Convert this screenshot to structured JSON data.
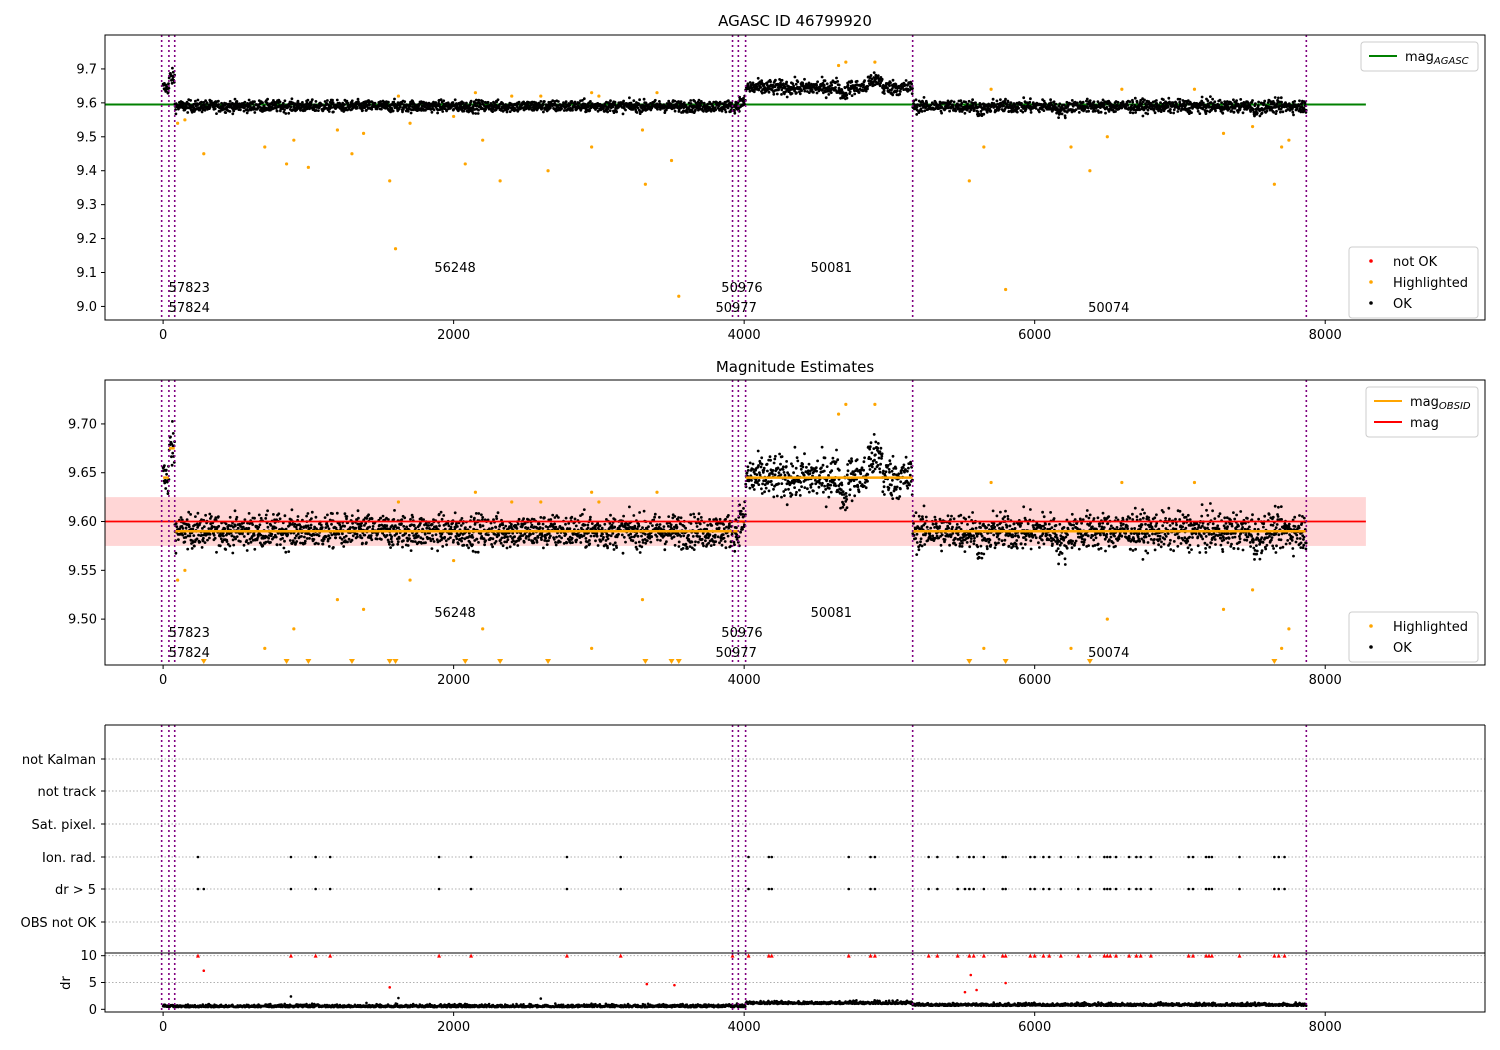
{
  "figure": {
    "title": "AGASC ID 46799920",
    "colors": {
      "ok": "#000000",
      "highlighted": "#ffa500",
      "not_ok": "#ff0000",
      "mag_agasc": "#008000",
      "mag": "#ff0000",
      "mag_obsid": "#ffa500",
      "obs_boundary": "#800080",
      "mag_band": "#ffd6d6"
    }
  },
  "chart_data": [
    {
      "id": "agasc",
      "type": "scatter",
      "title": "AGASC ID 46799920",
      "xlim": [
        -400,
        9100
      ],
      "ylim": [
        8.96,
        9.8
      ],
      "x_ticks": [
        0,
        2000,
        4000,
        6000,
        8000
      ],
      "y_ticks": [
        9.0,
        9.1,
        9.2,
        9.3,
        9.4,
        9.5,
        9.6,
        9.7
      ],
      "legend_top": {
        "position": "top-right",
        "entries": [
          {
            "label": "mag",
            "sub": "AGASC",
            "color": "#008000"
          }
        ]
      },
      "legend_bottom": {
        "position": "bottom-right",
        "entries": [
          {
            "label": "not OK",
            "color": "#ff0000"
          },
          {
            "label": "Highlighted",
            "color": "#ffa500"
          },
          {
            "label": "OK",
            "color": "#000000"
          }
        ]
      },
      "mag_agasc_line": {
        "value": 9.595,
        "x_range": [
          -400,
          8280
        ]
      },
      "observations": [
        {
          "obsid": "57824",
          "start": 0,
          "end": 40,
          "mean": 9.66
        },
        {
          "obsid": "57823",
          "start": 40,
          "end": 80,
          "mean": 9.68
        },
        {
          "obsid": "56248",
          "start": 80,
          "end": 3920,
          "mean": 9.59
        },
        {
          "obsid": "50977",
          "start": 3920,
          "end": 3960,
          "mean": 9.59
        },
        {
          "obsid": "50976",
          "start": 3960,
          "end": 4010,
          "mean": 9.6
        },
        {
          "obsid": "50081",
          "start": 4010,
          "end": 5160,
          "mean": 9.645
        },
        {
          "obsid": "50074",
          "start": 5160,
          "end": 7870,
          "mean": 9.59
        }
      ],
      "obs_boundaries": [
        -10,
        40,
        80,
        3920,
        3960,
        4010,
        5160,
        7870
      ],
      "highlighted_points": [
        [
          100,
          9.54
        ],
        [
          150,
          9.55
        ],
        [
          280,
          9.45
        ],
        [
          700,
          9.47
        ],
        [
          850,
          9.42
        ],
        [
          900,
          9.49
        ],
        [
          1000,
          9.41
        ],
        [
          1200,
          9.52
        ],
        [
          1300,
          9.45
        ],
        [
          1380,
          9.51
        ],
        [
          1560,
          9.37
        ],
        [
          1600,
          9.17
        ],
        [
          1620,
          9.62
        ],
        [
          1700,
          9.54
        ],
        [
          2000,
          9.56
        ],
        [
          2080,
          9.42
        ],
        [
          2150,
          9.63
        ],
        [
          2200,
          9.49
        ],
        [
          2320,
          9.37
        ],
        [
          2400,
          9.62
        ],
        [
          2600,
          9.62
        ],
        [
          2650,
          9.4
        ],
        [
          2950,
          9.47
        ],
        [
          2950,
          9.63
        ],
        [
          3000,
          9.62
        ],
        [
          3300,
          9.52
        ],
        [
          3320,
          9.36
        ],
        [
          3400,
          9.63
        ],
        [
          3500,
          9.43
        ],
        [
          3550,
          9.03
        ],
        [
          4650,
          9.71
        ],
        [
          4700,
          9.72
        ],
        [
          4900,
          9.72
        ],
        [
          5650,
          9.47
        ],
        [
          5700,
          9.64
        ],
        [
          5550,
          9.37
        ],
        [
          5800,
          9.05
        ],
        [
          6250,
          9.47
        ],
        [
          6380,
          9.4
        ],
        [
          6500,
          9.5
        ],
        [
          6600,
          9.64
        ],
        [
          7100,
          9.64
        ],
        [
          7300,
          9.51
        ],
        [
          7500,
          9.53
        ],
        [
          7650,
          9.36
        ],
        [
          7700,
          9.47
        ],
        [
          7750,
          9.49
        ]
      ]
    },
    {
      "id": "estimates",
      "type": "scatter",
      "title": "Magnitude Estimates",
      "xlim": [
        -400,
        9100
      ],
      "ylim": [
        9.453,
        9.745
      ],
      "x_ticks": [
        0,
        2000,
        4000,
        6000,
        8000
      ],
      "y_ticks": [
        9.5,
        9.55,
        9.6,
        9.65,
        9.7
      ],
      "legend_top": {
        "position": "top-right",
        "entries": [
          {
            "label": "mag",
            "sub": "OBSID",
            "color": "#ffa500"
          },
          {
            "label": "mag",
            "color": "#ff0000"
          }
        ]
      },
      "legend_bottom": {
        "position": "bottom-right",
        "entries": [
          {
            "label": "Highlighted",
            "color": "#ffa500"
          },
          {
            "label": "OK",
            "color": "#000000"
          }
        ]
      },
      "mag_line": {
        "value": 9.6,
        "band": [
          9.575,
          9.625
        ],
        "x_range": [
          -400,
          8280
        ]
      },
      "mag_obsid_segments": [
        {
          "start": 0,
          "end": 40,
          "value": 9.645
        },
        {
          "start": 40,
          "end": 80,
          "value": 9.675
        },
        {
          "start": 80,
          "end": 3960,
          "value": 9.59
        },
        {
          "start": 3960,
          "end": 4010,
          "value": 9.6
        },
        {
          "start": 4010,
          "end": 5160,
          "value": 9.645
        },
        {
          "start": 5160,
          "end": 7870,
          "value": 9.59
        }
      ]
    },
    {
      "id": "flags",
      "type": "scatter",
      "xlim": [
        -400,
        9100
      ],
      "x_ticks": [
        0,
        2000,
        4000,
        6000,
        8000
      ],
      "flag_rows": [
        "not Kalman",
        "not track",
        "Sat. pixel.",
        "Ion. rad.",
        "dr > 5",
        "OBS not OK"
      ],
      "ion_rad_x": [
        240,
        880,
        1050,
        1150,
        1900,
        2120,
        2780,
        3150,
        4030,
        4170,
        4190,
        4720,
        4870,
        4900,
        5270,
        5330,
        5470,
        5550,
        5580,
        5650,
        5780,
        5800,
        5970,
        6000,
        6060,
        6100,
        6180,
        6300,
        6380,
        6480,
        6500,
        6520,
        6560,
        6650,
        6700,
        6730,
        6800,
        7060,
        7090,
        7180,
        7200,
        7220,
        7410,
        7650,
        7680,
        7720
      ],
      "dr_gt5_x": [
        240,
        280,
        880,
        1050,
        1150,
        1900,
        2120,
        2780,
        3150,
        4030,
        4170,
        4190,
        4720,
        4870,
        4900,
        5270,
        5330,
        5470,
        5520,
        5550,
        5580,
        5650,
        5780,
        5800,
        5970,
        6000,
        6060,
        6100,
        6180,
        6300,
        6380,
        6480,
        6500,
        6520,
        6560,
        6650,
        6700,
        6730,
        6800,
        7060,
        7090,
        7180,
        7200,
        7220,
        7410,
        7650,
        7680,
        7720
      ]
    },
    {
      "id": "dr",
      "type": "scatter",
      "ylabel": "dr",
      "xlim": [
        -400,
        9100
      ],
      "ylim": [
        -0.5,
        10.5
      ],
      "x_ticks": [
        0,
        2000,
        4000,
        6000,
        8000
      ],
      "y_ticks": [
        0,
        5,
        10
      ],
      "clipped_at": 10,
      "red_points": [
        [
          240,
          10
        ],
        [
          280,
          7.2
        ],
        [
          880,
          10
        ],
        [
          1050,
          10
        ],
        [
          1150,
          10
        ],
        [
          1560,
          4.1
        ],
        [
          1900,
          10
        ],
        [
          2120,
          10
        ],
        [
          2780,
          10
        ],
        [
          3150,
          10
        ],
        [
          3330,
          4.7
        ],
        [
          3520,
          4.5
        ],
        [
          3920,
          10
        ],
        [
          4030,
          10
        ],
        [
          4170,
          10
        ],
        [
          4190,
          10
        ],
        [
          4720,
          10
        ],
        [
          4870,
          10
        ],
        [
          4900,
          10
        ],
        [
          5270,
          10
        ],
        [
          5330,
          10
        ],
        [
          5470,
          10
        ],
        [
          5520,
          3.2
        ],
        [
          5550,
          10
        ],
        [
          5560,
          6.4
        ],
        [
          5580,
          10
        ],
        [
          5600,
          3.6
        ],
        [
          5650,
          10
        ],
        [
          5780,
          10
        ],
        [
          5800,
          10
        ],
        [
          5800,
          4.9
        ],
        [
          5970,
          10
        ],
        [
          6000,
          10
        ],
        [
          6060,
          10
        ],
        [
          6100,
          10
        ],
        [
          6180,
          10
        ],
        [
          6300,
          10
        ],
        [
          6380,
          10
        ],
        [
          6480,
          10
        ],
        [
          6500,
          10
        ],
        [
          6520,
          10
        ],
        [
          6560,
          10
        ],
        [
          6650,
          10
        ],
        [
          6700,
          10
        ],
        [
          6730,
          10
        ],
        [
          6800,
          10
        ],
        [
          7060,
          10
        ],
        [
          7090,
          10
        ],
        [
          7180,
          10
        ],
        [
          7200,
          10
        ],
        [
          7220,
          10
        ],
        [
          7410,
          10
        ],
        [
          7650,
          10
        ],
        [
          7680,
          10
        ],
        [
          7720,
          10
        ]
      ]
    }
  ]
}
